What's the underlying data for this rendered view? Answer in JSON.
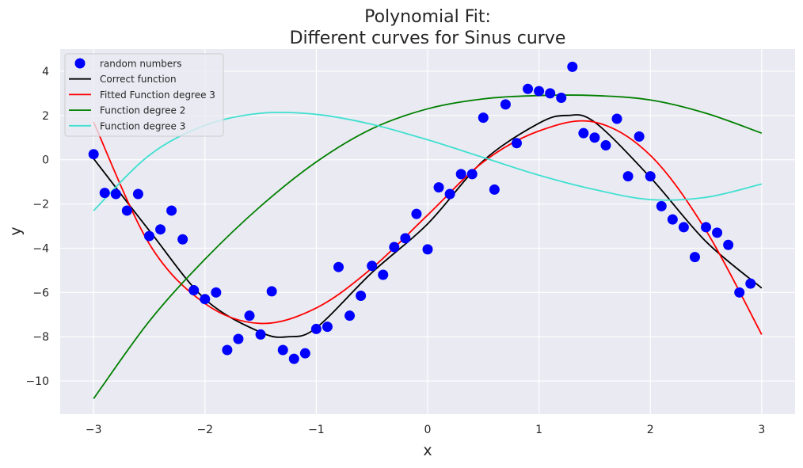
{
  "chart_data": {
    "type": "line",
    "title": [
      "Polynomial Fit:",
      "Different curves for Sinus curve"
    ],
    "xlabel": "x",
    "ylabel": "y",
    "xlim": [
      -3.3,
      3.3
    ],
    "ylim": [
      -11.5,
      5.0
    ],
    "xticks": [
      -3,
      -2,
      -1,
      0,
      1,
      2,
      3
    ],
    "xtick_labels": [
      "−3",
      "−2",
      "−1",
      "0",
      "1",
      "2",
      "3"
    ],
    "yticks": [
      4,
      2,
      0,
      -2,
      -4,
      -6,
      -8,
      -10
    ],
    "ytick_labels": [
      "4",
      "2",
      "0",
      "−2",
      "−4",
      "−6",
      "−8",
      "−10"
    ],
    "grid": true,
    "background": "#EAEAF2",
    "legend_placement": "top-left",
    "legend": [
      {
        "label": "random numbers",
        "kind": "marker",
        "color": "#0000FF"
      },
      {
        "label": "Correct function",
        "kind": "line",
        "color": "#000000"
      },
      {
        "label": "Fitted Function degree 3",
        "kind": "line",
        "color": "#FF0000"
      },
      {
        "label": "Function degree 2",
        "kind": "line",
        "color": "#008000"
      },
      {
        "label": "Function degree 3",
        "kind": "line",
        "color": "#40E0D0"
      }
    ],
    "scatter": {
      "name": "random numbers",
      "color": "#0000FF",
      "points": [
        [
          -3.0,
          0.25
        ],
        [
          -2.9,
          -1.5
        ],
        [
          -2.8,
          -1.55
        ],
        [
          -2.7,
          -2.3
        ],
        [
          -2.6,
          -1.55
        ],
        [
          -2.5,
          -3.45
        ],
        [
          -2.4,
          -3.15
        ],
        [
          -2.3,
          -2.3
        ],
        [
          -2.2,
          -3.6
        ],
        [
          -2.1,
          -5.9
        ],
        [
          -2.0,
          -6.3
        ],
        [
          -1.9,
          -6.0
        ],
        [
          -1.8,
          -8.6
        ],
        [
          -1.7,
          -8.1
        ],
        [
          -1.6,
          -7.05
        ],
        [
          -1.5,
          -7.9
        ],
        [
          -1.4,
          -5.95
        ],
        [
          -1.3,
          -8.6
        ],
        [
          -1.2,
          -9.0
        ],
        [
          -1.1,
          -8.75
        ],
        [
          -1.0,
          -7.65
        ],
        [
          -0.9,
          -7.55
        ],
        [
          -0.8,
          -4.85
        ],
        [
          -0.7,
          -7.05
        ],
        [
          -0.6,
          -6.15
        ],
        [
          -0.5,
          -4.8
        ],
        [
          -0.4,
          -5.2
        ],
        [
          -0.3,
          -3.95
        ],
        [
          -0.2,
          -3.55
        ],
        [
          -0.1,
          -2.45
        ],
        [
          0.0,
          -4.05
        ],
        [
          0.1,
          -1.25
        ],
        [
          0.2,
          -1.55
        ],
        [
          0.3,
          -0.65
        ],
        [
          0.4,
          -0.65
        ],
        [
          0.5,
          1.9
        ],
        [
          0.6,
          -1.35
        ],
        [
          0.7,
          2.5
        ],
        [
          0.8,
          0.75
        ],
        [
          0.9,
          3.2
        ],
        [
          1.0,
          3.1
        ],
        [
          1.1,
          3.0
        ],
        [
          1.2,
          2.8
        ],
        [
          1.3,
          4.2
        ],
        [
          1.4,
          1.2
        ],
        [
          1.5,
          1.0
        ],
        [
          1.6,
          0.65
        ],
        [
          1.7,
          1.85
        ],
        [
          1.8,
          -0.75
        ],
        [
          1.9,
          1.05
        ],
        [
          2.0,
          -0.75
        ],
        [
          2.1,
          -2.1
        ],
        [
          2.2,
          -2.7
        ],
        [
          2.3,
          -3.05
        ],
        [
          2.4,
          -4.4
        ],
        [
          2.5,
          -3.05
        ],
        [
          2.6,
          -3.3
        ],
        [
          2.7,
          -3.85
        ],
        [
          2.8,
          -6.0
        ],
        [
          2.9,
          -5.6
        ]
      ]
    },
    "series": [
      {
        "name": "Correct function",
        "color": "#000000",
        "x": [
          -3.0,
          -2.5,
          -2.0,
          -1.5,
          -1.25,
          -1.0,
          -0.5,
          0.0,
          0.5,
          1.0,
          1.25,
          1.5,
          2.0,
          2.5,
          3.0
        ],
        "y": [
          0.05,
          -3.2,
          -6.3,
          -7.8,
          -8.0,
          -7.6,
          -5.1,
          -2.9,
          -0.05,
          1.65,
          2.0,
          1.7,
          -0.8,
          -3.7,
          -5.8
        ]
      },
      {
        "name": "Fitted Function degree 3",
        "color": "#FF0000",
        "x": [
          -3.0,
          -2.5,
          -2.0,
          -1.5,
          -1.0,
          -0.5,
          0.0,
          0.5,
          1.0,
          1.5,
          2.0,
          2.5,
          3.0
        ],
        "y": [
          1.7,
          -3.8,
          -6.5,
          -7.4,
          -6.7,
          -4.9,
          -2.5,
          -0.1,
          1.3,
          1.7,
          0.2,
          -3.2,
          -7.9
        ]
      },
      {
        "name": "Function degree 2",
        "color": "#008000",
        "x": [
          -3.0,
          -2.5,
          -2.0,
          -1.5,
          -1.0,
          -0.5,
          0.0,
          0.5,
          1.0,
          1.5,
          2.0,
          2.5,
          3.0
        ],
        "y": [
          -10.8,
          -7.3,
          -4.5,
          -2.1,
          -0.1,
          1.4,
          2.3,
          2.75,
          2.9,
          2.9,
          2.7,
          2.1,
          1.2
        ]
      },
      {
        "name": "Function degree 3",
        "color": "#40E0D0",
        "x": [
          -3.0,
          -2.5,
          -2.0,
          -1.5,
          -1.0,
          -0.5,
          0.0,
          0.5,
          1.0,
          1.5,
          2.0,
          2.5,
          3.0
        ],
        "y": [
          -2.3,
          0.2,
          1.55,
          2.1,
          2.05,
          1.6,
          0.9,
          0.1,
          -0.7,
          -1.35,
          -1.8,
          -1.7,
          -1.1
        ]
      }
    ]
  }
}
